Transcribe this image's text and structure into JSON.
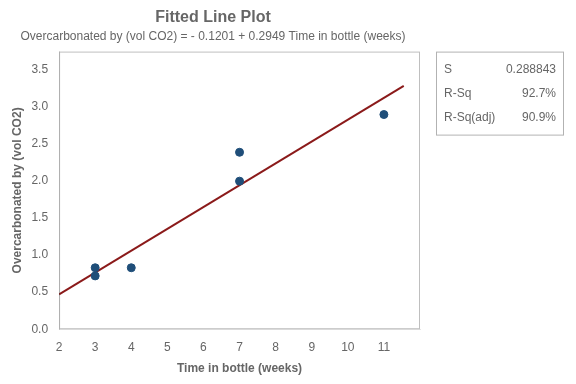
{
  "chart_data": {
    "type": "scatter",
    "title": "Fitted Line Plot",
    "subtitle": "Overcarbonated by (vol CO2) = - 0.1201 + 0.2949 Time in bottle (weeks)",
    "xlabel": "Time in bottle (weeks)",
    "ylabel": "Overcarbonated by (vol CO2)",
    "series": [
      {
        "type": "scatter",
        "color": "#1f4e79",
        "x": [
          3,
          3,
          4,
          7,
          7,
          11
        ],
        "values": [
          0.83,
          0.72,
          0.83,
          2.0,
          2.39,
          2.9
        ]
      },
      {
        "type": "line",
        "color": "#8b1a1a",
        "x": [
          2.0,
          11.55
        ],
        "values": [
          0.4697,
          3.285995
        ]
      }
    ],
    "xlim": [
      2,
      12
    ],
    "ylim": [
      0,
      3.75
    ],
    "xticks": [
      2,
      3,
      4,
      5,
      6,
      7,
      8,
      9,
      10,
      11
    ],
    "yticks": [
      {
        "value": 0,
        "label": "0.0"
      },
      0.5,
      {
        "value": 1,
        "label": "1.0"
      },
      1.5,
      {
        "value": 2,
        "label": "2.0"
      },
      2.5,
      {
        "value": 3,
        "label": "3.0"
      },
      3.5
    ],
    "grid": false,
    "annotations": [
      {
        "label": "S",
        "text": "0.288843"
      },
      {
        "label": "R-Sq",
        "text": "92.7%"
      },
      {
        "label": "R-Sq(adj)",
        "text": "90.9%"
      }
    ]
  }
}
